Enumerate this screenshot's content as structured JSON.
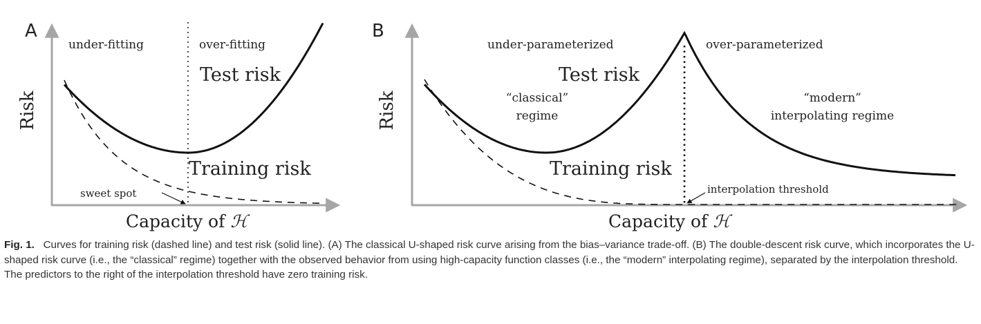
{
  "panel_a": {
    "letter": "A",
    "y_label": "Risk",
    "x_label": "Capacity of ",
    "x_symbol": "ℋ",
    "region_left": "under-fitting",
    "region_right": "over-fitting",
    "test_label": "Test risk",
    "train_label": "Training risk",
    "arrow_note": "sweet spot"
  },
  "panel_b": {
    "letter": "B",
    "y_label": "Risk",
    "x_label": "Capacity of ",
    "x_symbol": "ℋ",
    "region_left": "under-parameterized",
    "region_right": "over-parameterized",
    "test_label": "Test risk",
    "train_label": "Training risk",
    "classical_line1": "“classical”",
    "classical_line2": "regime",
    "modern_line1": "“modern”",
    "modern_line2": "interpolating regime",
    "arrow_note": "interpolation threshold"
  },
  "caption": {
    "label": "Fig. 1.",
    "text": "Curves for training risk (dashed line) and test risk (solid line). (A) The classical U-shaped risk curve arising from the bias–variance trade-off. (B) The double-descent risk curve, which incorporates the U-shaped risk curve (i.e., the “classical” regime) together with the observed behavior from using high-capacity function classes (i.e., the “modern” interpolating regime), separated by the interpolation threshold. The predictors to the right of the interpolation threshold have zero training risk."
  },
  "colors": {
    "axis": "#a6a6a6",
    "curve": "#111111",
    "text": "#222222"
  }
}
